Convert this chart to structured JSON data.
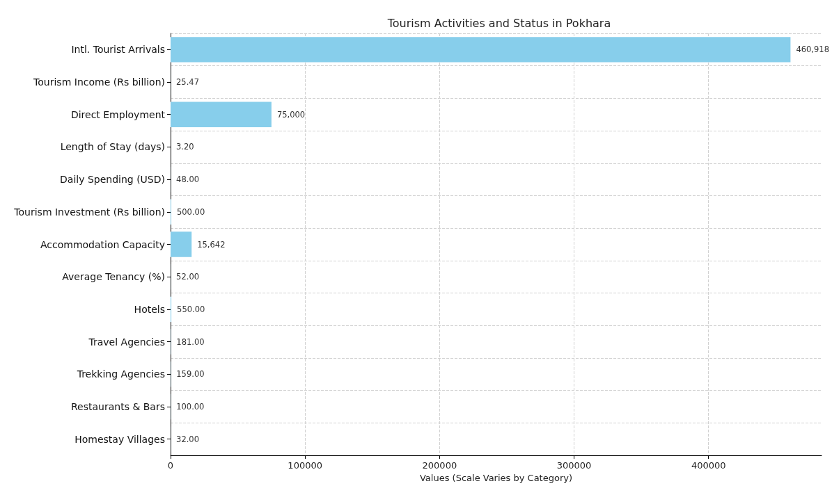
{
  "chart_data": {
    "type": "bar",
    "orientation": "horizontal",
    "title": "Tourism Activities and Status in Pokhara",
    "xlabel": "Values (Scale Varies by Category)",
    "categories": [
      "Intl. Tourist Arrivals",
      "Tourism Income (Rs billion)",
      "Direct Employment",
      "Length of Stay (days)",
      "Daily Spending (USD)",
      "Tourism Investment (Rs billion)",
      "Accommodation Capacity",
      "Average Tenancy (%)",
      "Hotels",
      "Travel Agencies",
      "Trekking Agencies",
      "Restaurants & Bars",
      "Homestay Villages"
    ],
    "series": [
      {
        "color": "#87ceeb",
        "values": [
          460918,
          25.47,
          75000,
          3.2,
          48,
          500,
          15642,
          52,
          550,
          181,
          159,
          100,
          32
        ],
        "value_labels": [
          "460,918",
          "25.47",
          "75,000",
          "3.20",
          "48.00",
          "500.00",
          "15,642",
          "52.00",
          "550.00",
          "181.00",
          "159.00",
          "100.00",
          "32.00"
        ]
      }
    ],
    "xlim": [
      0,
      484000
    ],
    "xticks": [
      0,
      100000,
      200000,
      300000,
      400000
    ],
    "grid": true
  }
}
